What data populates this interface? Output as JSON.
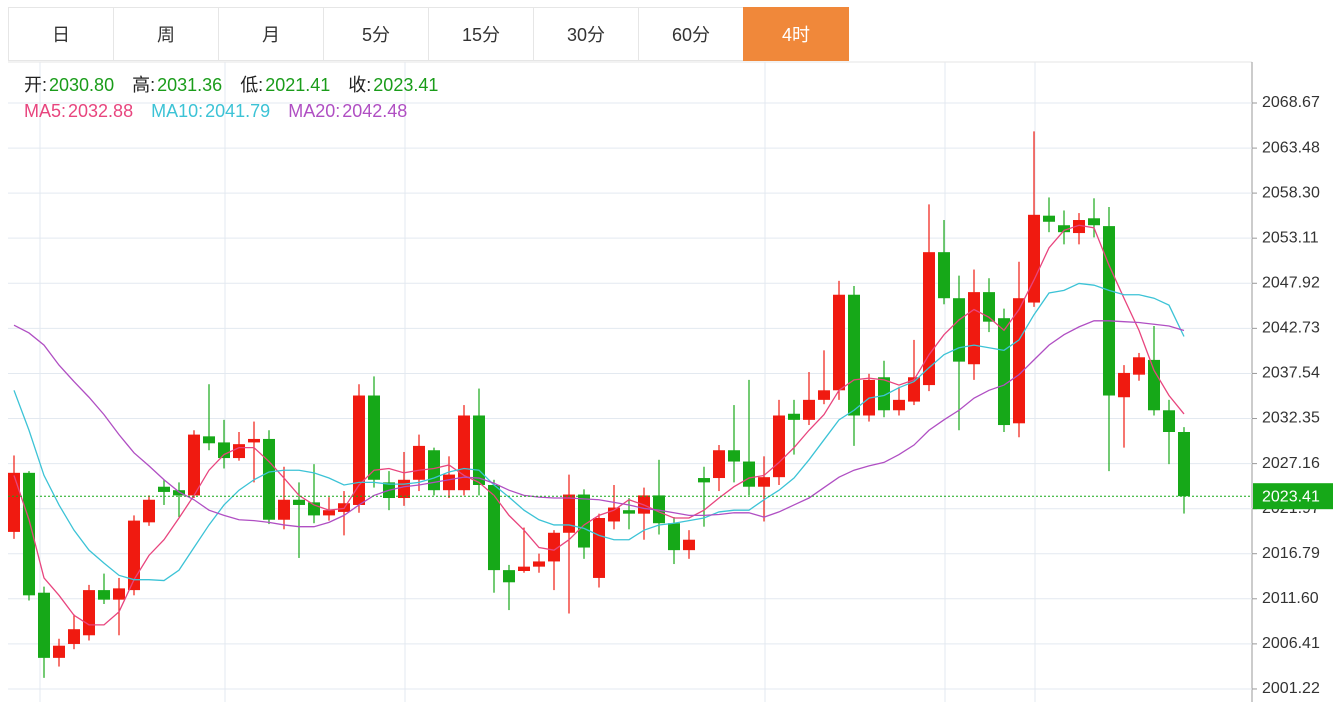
{
  "tabs": {
    "items": [
      "日",
      "周",
      "月",
      "5分",
      "15分",
      "30分",
      "60分",
      "4时"
    ],
    "active": 7
  },
  "header": {
    "ohlc": [
      {
        "label": "开:",
        "value": "2030.80"
      },
      {
        "label": "高:",
        "value": "2031.36"
      },
      {
        "label": "低:",
        "value": "2021.41"
      },
      {
        "label": "收:",
        "value": "2023.41"
      }
    ],
    "ma": [
      {
        "label": "MA5:",
        "value": "2032.88"
      },
      {
        "label": "MA10:",
        "value": "2041.79"
      },
      {
        "label": "MA20:",
        "value": "2042.48"
      }
    ]
  },
  "chart_data": {
    "type": "candlestick",
    "up_color": "#f01a10",
    "down_color": "#16a818",
    "open": [
      2019.3,
      2026.1,
      2012.3,
      2004.8,
      2006.4,
      2007.4,
      2012.6,
      2011.5,
      2012.6,
      2020.4,
      2024.5,
      2024.1,
      2023.5,
      2030.3,
      2029.6,
      2027.8,
      2029.6,
      2030.0,
      2020.7,
      2023.0,
      2022.7,
      2021.2,
      2021.6,
      2022.4,
      2035.0,
      2025.0,
      2023.2,
      2025.3,
      2028.7,
      2024.1,
      2024.1,
      2032.7,
      2024.7,
      2014.9,
      2014.8,
      2015.3,
      2015.9,
      2019.2,
      2023.6,
      2014.0,
      2020.5,
      2021.8,
      2021.4,
      2023.5,
      2020.3,
      2017.2,
      2025.5,
      2025.5,
      2028.7,
      2027.4,
      2024.5,
      2025.6,
      2032.9,
      2032.2,
      2034.5,
      2035.6,
      2046.6,
      2032.7,
      2037.1,
      2033.3,
      2034.3,
      2036.2,
      2051.5,
      2046.2,
      2038.6,
      2046.9,
      2043.9,
      2031.8,
      2045.7,
      2055.7,
      2054.6,
      2053.7,
      2055.4,
      2054.5,
      2034.8,
      2037.4,
      2039.1,
      2033.3,
      2030.8
    ],
    "high": [
      2028.1,
      2026.3,
      2013.0,
      2007.0,
      2009.8,
      2013.2,
      2014.5,
      2014.0,
      2021.2,
      2023.5,
      2025.3,
      2025.0,
      2031.0,
      2036.3,
      2032.2,
      2030.8,
      2032.0,
      2031.0,
      2026.8,
      2025.0,
      2027.1,
      2023.3,
      2024.0,
      2036.3,
      2037.2,
      2026.3,
      2028.5,
      2030.5,
      2029.0,
      2028.0,
      2033.9,
      2035.8,
      2025.3,
      2015.5,
      2019.8,
      2016.8,
      2019.5,
      2025.9,
      2024.2,
      2021.4,
      2024.7,
      2023.2,
      2024.4,
      2027.6,
      2021.0,
      2019.5,
      2026.8,
      2029.3,
      2033.9,
      2036.8,
      2028.0,
      2034.5,
      2034.5,
      2037.7,
      2040.2,
      2048.2,
      2047.6,
      2037.5,
      2039.0,
      2036.0,
      2041.4,
      2057.0,
      2055.2,
      2048.8,
      2049.5,
      2048.5,
      2045.0,
      2050.4,
      2065.4,
      2057.8,
      2056.3,
      2056.0,
      2057.7,
      2056.7,
      2038.5,
      2039.9,
      2043.0,
      2034.5,
      2031.36
    ],
    "low": [
      2018.5,
      2011.4,
      2002.5,
      2003.8,
      2005.8,
      2006.8,
      2011.0,
      2007.4,
      2012.0,
      2020.0,
      2022.4,
      2021.0,
      2023.2,
      2028.7,
      2026.6,
      2027.5,
      2025.0,
      2020.2,
      2019.6,
      2016.3,
      2020.3,
      2020.6,
      2018.9,
      2021.5,
      2024.4,
      2021.8,
      2022.3,
      2024.0,
      2023.5,
      2023.2,
      2023.5,
      2023.5,
      2012.3,
      2010.3,
      2014.6,
      2014.6,
      2012.6,
      2009.9,
      2016.2,
      2012.9,
      2019.6,
      2019.6,
      2018.4,
      2019.0,
      2015.6,
      2016.2,
      2019.9,
      2024.0,
      2025.0,
      2023.5,
      2020.5,
      2024.7,
      2028.2,
      2031.6,
      2034.0,
      2034.5,
      2029.2,
      2032.0,
      2032.5,
      2032.7,
      2033.9,
      2035.5,
      2045.5,
      2031.0,
      2036.8,
      2042.3,
      2030.8,
      2030.2,
      2045.2,
      2053.8,
      2052.4,
      2052.4,
      2053.2,
      2026.3,
      2029.0,
      2036.7,
      2032.7,
      2027.1,
      2021.41
    ],
    "close": [
      2026.1,
      2012.0,
      2004.8,
      2006.2,
      2008.1,
      2012.6,
      2011.5,
      2012.8,
      2020.6,
      2023.0,
      2023.9,
      2023.5,
      2030.5,
      2029.5,
      2027.8,
      2029.4,
      2030.0,
      2020.7,
      2023.0,
      2022.4,
      2021.2,
      2021.8,
      2022.6,
      2035.0,
      2025.3,
      2023.2,
      2025.3,
      2029.2,
      2024.1,
      2025.9,
      2032.7,
      2024.7,
      2014.9,
      2013.5,
      2015.3,
      2015.9,
      2019.2,
      2023.6,
      2017.5,
      2020.9,
      2022.1,
      2021.4,
      2023.5,
      2020.3,
      2017.2,
      2018.4,
      2025.0,
      2028.7,
      2027.4,
      2024.5,
      2025.6,
      2032.7,
      2032.2,
      2034.5,
      2035.6,
      2046.6,
      2032.7,
      2036.8,
      2033.3,
      2034.5,
      2037.1,
      2051.5,
      2046.2,
      2038.9,
      2046.9,
      2043.5,
      2031.6,
      2046.2,
      2055.8,
      2055.0,
      2053.8,
      2055.2,
      2054.6,
      2035.0,
      2037.6,
      2039.4,
      2033.3,
      2030.8,
      2023.41
    ],
    "series": [
      {
        "name": "MA5",
        "color": "#e8457e",
        "values": [
          2025.8,
          2020.7,
          2014.0,
          2012.0,
          2009.7,
          2008.6,
          2008.6,
          2010.1,
          2013.8,
          2016.6,
          2018.4,
          2020.9,
          2023.5,
          2026.4,
          2028.2,
          2029.0,
          2029.0,
          2027.4,
          2025.5,
          2023.5,
          2022.4,
          2021.8,
          2022.0,
          2024.7,
          2026.4,
          2026.6,
          2026.1,
          2026.4,
          2026.6,
          2027.0,
          2025.8,
          2025.0,
          2023.5,
          2021.2,
          2019.5,
          2017.5,
          2017.2,
          2018.4,
          2020.1,
          2021.2,
          2021.8,
          2023.0,
          2022.4,
          2021.6,
          2020.9,
          2020.9,
          2021.8,
          2023.2,
          2024.5,
          2025.5,
          2025.8,
          2027.3,
          2029.0,
          2031.0,
          2032.8,
          2035.6,
          2036.8,
          2037.0,
          2036.8,
          2036.2,
          2036.8,
          2039.7,
          2042.0,
          2043.7,
          2044.9,
          2044.0,
          2042.5,
          2044.9,
          2048.3,
          2052.0,
          2054.0,
          2054.6,
          2054.3,
          2050.0,
          2046.2,
          2042.5,
          2037.9,
          2035.0,
          2032.88
        ]
      },
      {
        "name": "MA10",
        "color": "#3cc3d6",
        "values": [
          2035.6,
          2031.0,
          2025.8,
          2022.4,
          2019.5,
          2017.2,
          2015.7,
          2014.3,
          2013.8,
          2013.8,
          2013.7,
          2014.9,
          2017.5,
          2020.1,
          2022.4,
          2024.1,
          2025.3,
          2026.2,
          2026.4,
          2026.4,
          2026.1,
          2025.5,
          2024.7,
          2025.0,
          2025.0,
          2024.8,
          2024.8,
          2025.0,
          2025.5,
          2026.2,
          2026.6,
          2026.4,
          2024.7,
          2023.3,
          2021.8,
          2020.7,
          2020.1,
          2020.1,
          2019.7,
          2018.9,
          2018.4,
          2018.4,
          2019.5,
          2020.1,
          2020.3,
          2020.6,
          2020.9,
          2021.6,
          2021.8,
          2021.8,
          2023.0,
          2024.1,
          2025.5,
          2027.6,
          2029.9,
          2032.2,
          2033.3,
          2034.7,
          2035.0,
          2035.9,
          2036.6,
          2038.2,
          2039.7,
          2040.5,
          2040.8,
          2040.5,
          2040.2,
          2041.4,
          2044.3,
          2046.8,
          2047.1,
          2047.9,
          2047.7,
          2047.1,
          2046.6,
          2046.6,
          2046.2,
          2045.4,
          2041.79
        ]
      },
      {
        "name": "MA20",
        "color": "#b04fc3",
        "values": [
          2043.1,
          2042.2,
          2040.8,
          2038.5,
          2036.6,
          2034.8,
          2032.8,
          2030.5,
          2028.4,
          2026.9,
          2025.3,
          2023.9,
          2023.0,
          2021.8,
          2021.2,
          2020.7,
          2020.6,
          2020.4,
          2020.1,
          2019.9,
          2019.9,
          2020.4,
          2021.2,
          2022.4,
          2023.5,
          2024.1,
          2024.5,
          2024.7,
          2025.0,
          2025.3,
          2025.6,
          2025.5,
          2024.9,
          2024.1,
          2023.5,
          2023.3,
          2023.2,
          2023.2,
          2023.1,
          2023.0,
          2022.7,
          2022.4,
          2022.0,
          2021.8,
          2021.5,
          2021.2,
          2021.2,
          2021.3,
          2021.5,
          2021.5,
          2021.0,
          2021.6,
          2022.4,
          2023.2,
          2024.4,
          2025.6,
          2026.4,
          2026.9,
          2027.3,
          2028.2,
          2029.3,
          2031.0,
          2032.2,
          2033.3,
          2034.7,
          2035.6,
          2036.2,
          2037.4,
          2039.1,
          2040.8,
          2042.0,
          2042.9,
          2043.6,
          2043.6,
          2043.5,
          2043.4,
          2043.2,
          2043.0,
          2042.48
        ]
      }
    ],
    "ylim": [
      1999.72,
      2073.39
    ],
    "yticks": [
      2068.67,
      2063.48,
      {
        "value": 2058.3,
        "label": "2058.30"
      },
      2053.11,
      2047.92,
      2042.73,
      2037.54,
      2032.35,
      2027.16,
      2021.97,
      2016.79,
      {
        "value": 2011.6,
        "label": "2011.60"
      },
      2006.41,
      2001.22
    ],
    "grid": true,
    "log_scale": false
  }
}
